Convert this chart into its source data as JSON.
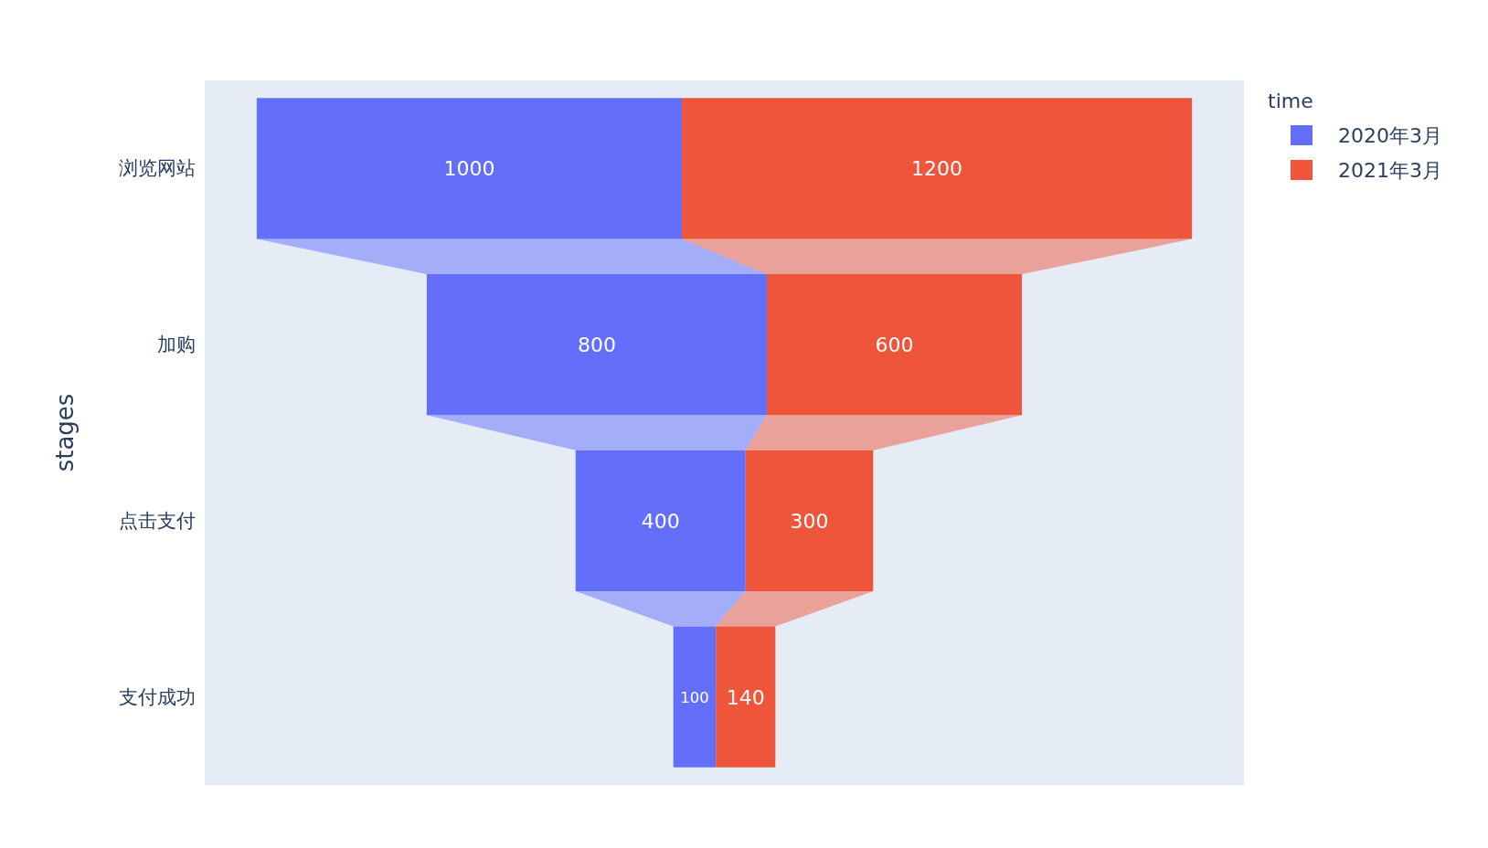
{
  "chart_data": {
    "type": "other",
    "ylabel": "stages",
    "legend_title": "time",
    "legend": "top right",
    "data_labels": true,
    "categories": [
      "浏览网站",
      "加购",
      "点击支付",
      "支付成功"
    ],
    "series": [
      {
        "name": "2020年3月",
        "color": "#636efa",
        "values": [
          1000,
          800,
          400,
          100
        ]
      },
      {
        "name": "2021年3月",
        "color": "#ef553b",
        "values": [
          1200,
          600,
          300,
          140
        ]
      }
    ]
  }
}
